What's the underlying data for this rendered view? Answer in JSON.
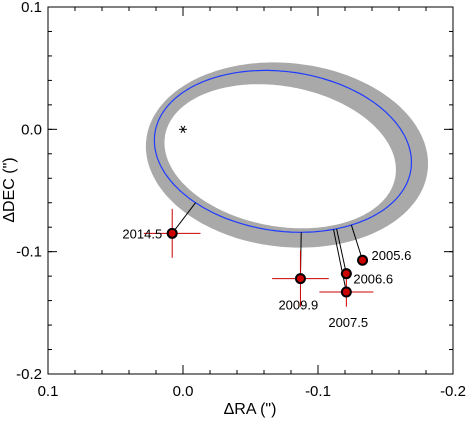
{
  "chart_data": {
    "type": "scatter",
    "title": "",
    "xlabel": "ΔRA (\")",
    "ylabel": "ΔDEC (\")",
    "xlim": [
      0.1,
      -0.2
    ],
    "ylim": [
      -0.2,
      0.1
    ],
    "x_ticks": [
      {
        "value": 0.1,
        "label": "0.1"
      },
      {
        "value": 0.0,
        "label": "0.0"
      },
      {
        "value": -0.1,
        "label": "-0.1"
      },
      {
        "value": -0.2,
        "label": "-0.2"
      }
    ],
    "y_ticks": [
      {
        "value": 0.1,
        "label": "0.1"
      },
      {
        "value": 0.0,
        "label": "0.0"
      },
      {
        "value": -0.1,
        "label": "-0.1"
      },
      {
        "value": -0.2,
        "label": "-0.2"
      }
    ],
    "central_star": {
      "x": 0.0,
      "y": 0.0,
      "symbol": "*"
    },
    "orbit_fit": {
      "color": "#1f3cff",
      "shape": "ellipse",
      "center": [
        -0.074,
        -0.018
      ],
      "semi_major": 0.096,
      "semi_minor": 0.065,
      "rotation_deg": 10
    },
    "orbit_uncertainty_band": {
      "color": "#a9a9a9"
    },
    "observations": [
      {
        "epoch": "2005.6",
        "x": -0.133,
        "y": -0.107,
        "x_err": 0.003,
        "y_err": 0.003
      },
      {
        "epoch": "2006.6",
        "x": -0.121,
        "y": -0.118,
        "x_err": 0.004,
        "y_err": 0.004
      },
      {
        "epoch": "2007.5",
        "x": -0.121,
        "y": -0.133,
        "x_err": 0.02,
        "y_err": 0.012
      },
      {
        "epoch": "2009.9",
        "x": -0.087,
        "y": -0.122,
        "x_err": 0.021,
        "y_err": 0.023
      },
      {
        "epoch": "2014.5",
        "x": 0.008,
        "y": -0.085,
        "x_err": 0.021,
        "y_err": 0.02
      }
    ],
    "colors": {
      "point_fill": "#cc0000",
      "point_edge": "#000000",
      "error_bar": "#cc0000",
      "residual": "#000000"
    }
  }
}
